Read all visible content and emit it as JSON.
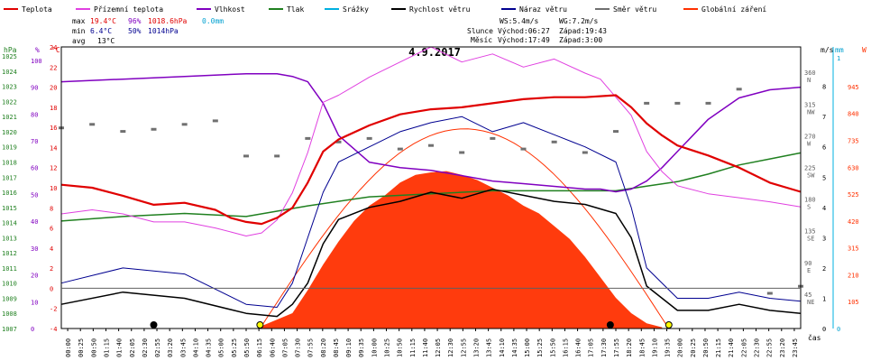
{
  "chart_data": {
    "type": "line",
    "title": "4.9.2017",
    "xlabel": "čas",
    "legend": [
      {
        "label": "Teplota",
        "color": "#e00000"
      },
      {
        "label": "Přízemní teplota",
        "color": "#e040e0"
      },
      {
        "label": "Vlhkost",
        "color": "#8000c0"
      },
      {
        "label": "Tlak",
        "color": "#208020"
      },
      {
        "label": "Srážky",
        "color": "#00b0e0"
      },
      {
        "label": "Rychlost větru",
        "color": "#000000"
      },
      {
        "label": "Náraz větru",
        "color": "#000090"
      },
      {
        "label": "Směr větru",
        "color": "#707070"
      },
      {
        "label": "Globální záření",
        "color": "#ff3000"
      }
    ],
    "stats": {
      "max_label": "max",
      "max_temp": "19.4°C",
      "max_hum": "96%",
      "max_press": "1018.6hPa",
      "max_rain": "0.0mm",
      "min_label": "min",
      "min_temp": "6.4°C",
      "min_hum": "50%",
      "min_press": "1014hPa",
      "avg_label": "avg",
      "avg_temp": "13°C"
    },
    "sun": {
      "ws": "WS:5.4m/s",
      "wg": "WG:7.2m/s",
      "slunce_label": "Slunce",
      "sun_rise": "Východ:06:27",
      "sun_set": "Západ:19:43",
      "mesic_label": "Měsíc",
      "moon_rise": "Východ:17:49",
      "moon_set": "Západ:3:00"
    },
    "axis_units": {
      "hpa": "hPa",
      "pct": "%",
      "degc": "°C",
      "ms": "m/s",
      "mm": "mm",
      "w": "W"
    },
    "pressure_ticks": [
      "1025",
      "1024",
      "1023",
      "1022",
      "1021",
      "1020",
      "1019",
      "1018",
      "1017",
      "1016",
      "1015",
      "1014",
      "1013",
      "1012",
      "1011",
      "1010",
      "1009",
      "1008",
      "1007"
    ],
    "humidity_ticks": [
      "100",
      "90",
      "80",
      "70",
      "60",
      "50",
      "40",
      "30",
      "20",
      "10",
      "0"
    ],
    "temperature_ticks": [
      "24",
      "22",
      "20",
      "18",
      "16",
      "14",
      "12",
      "10",
      "8",
      "6",
      "4",
      "2",
      "0",
      "-2",
      "-4"
    ],
    "direction_ticks": [
      {
        "v": 360,
        "a": "360",
        "b": "N"
      },
      {
        "v": 315,
        "a": "315",
        "b": "NW"
      },
      {
        "v": 270,
        "a": "270",
        "b": "W"
      },
      {
        "v": 225,
        "a": "225",
        "b": "SW"
      },
      {
        "v": 180,
        "a": "180",
        "b": "S"
      },
      {
        "v": 135,
        "a": "135",
        "b": "SE"
      },
      {
        "v": 90,
        "a": "90",
        "b": "E"
      },
      {
        "v": 45,
        "a": "45",
        "b": "NE"
      }
    ],
    "wind_ticks": [
      "8",
      "7",
      "6",
      "5",
      "4",
      "3",
      "2",
      "1",
      "0"
    ],
    "rain_ticks": [
      "1",
      "0"
    ],
    "radiation_ticks": [
      "945",
      "840",
      "735",
      "630",
      "525",
      "420",
      "315",
      "210",
      "105"
    ],
    "x_ticks": [
      "00:00",
      "00:25",
      "00:50",
      "01:15",
      "01:40",
      "02:05",
      "02:30",
      "02:55",
      "03:20",
      "03:45",
      "04:10",
      "04:35",
      "05:00",
      "05:25",
      "05:50",
      "06:15",
      "06:40",
      "07:05",
      "07:30",
      "07:55",
      "08:20",
      "08:45",
      "09:10",
      "09:35",
      "10:00",
      "10:25",
      "10:50",
      "11:15",
      "11:40",
      "12:05",
      "12:30",
      "12:55",
      "13:20",
      "13:45",
      "14:10",
      "14:35",
      "15:00",
      "15:25",
      "15:50",
      "16:15",
      "16:40",
      "17:05",
      "17:30",
      "17:55",
      "18:20",
      "18:45",
      "19:10",
      "19:35",
      "20:00",
      "20:25",
      "20:50",
      "21:15",
      "21:40",
      "22:05",
      "22:30",
      "22:55",
      "23:20",
      "23:45"
    ],
    "x_range_hours": [
      0,
      24
    ],
    "series": [
      {
        "name": "Teplota",
        "unit": "°C",
        "x": [
          0,
          1,
          2,
          3,
          4,
          5,
          5.5,
          6,
          6.5,
          7,
          7.5,
          8,
          8.5,
          9,
          10,
          11,
          12,
          13,
          14,
          15,
          16,
          17,
          18,
          18.5,
          19,
          19.5,
          20,
          21,
          22,
          23,
          24
        ],
        "y": [
          10.3,
          10,
          9.2,
          8.3,
          8.5,
          7.8,
          7,
          6.6,
          6.4,
          7,
          8,
          10.5,
          13.6,
          14.8,
          16.2,
          17.3,
          17.8,
          18,
          18.4,
          18.8,
          19,
          19,
          19.2,
          18,
          16.4,
          15.2,
          14.2,
          13.2,
          12,
          10.5,
          9.6
        ]
      },
      {
        "name": "Přízemní teplota",
        "unit": "°C",
        "x": [
          0,
          1,
          2,
          3,
          4,
          5,
          5.5,
          6,
          6.5,
          7,
          7.5,
          8,
          8.5,
          9,
          10,
          11,
          12,
          13,
          14,
          15,
          16,
          17,
          17.5,
          18,
          18.5,
          19,
          19.5,
          20,
          21,
          22,
          23,
          24
        ],
        "y": [
          7.4,
          7.8,
          7.4,
          6.6,
          6.6,
          6,
          5.6,
          5.2,
          5.5,
          6.8,
          9.5,
          13.5,
          18.5,
          19.2,
          21,
          22.5,
          24,
          22.5,
          23.3,
          22,
          22.8,
          21.4,
          20.8,
          19,
          17.2,
          13.6,
          11.6,
          10.2,
          9.4,
          9,
          8.6,
          8.1
        ]
      },
      {
        "name": "Vlhkost",
        "unit": "%",
        "x": [
          0,
          2,
          4,
          6,
          7,
          7.5,
          8,
          8.5,
          9,
          10,
          11,
          12,
          13,
          14,
          15,
          16,
          17,
          17.5,
          18,
          18.5,
          19,
          19.5,
          20,
          21,
          22,
          23,
          24
        ],
        "y": [
          92,
          93,
          94,
          95,
          95,
          94,
          92,
          84,
          72,
          62,
          60,
          59,
          57,
          55,
          54,
          53,
          52,
          52,
          51,
          52,
          55,
          60,
          66,
          78,
          86,
          89,
          90
        ]
      },
      {
        "name": "Tlak",
        "unit": "hPa",
        "x": [
          0,
          2,
          4,
          6,
          8,
          10,
          12,
          14,
          16,
          18,
          19,
          20,
          21,
          22,
          23,
          24
        ],
        "y": [
          1014.1,
          1014.4,
          1014.6,
          1014.4,
          1015.1,
          1015.7,
          1015.9,
          1016.1,
          1016.1,
          1016.1,
          1016.4,
          1016.7,
          1017.2,
          1017.8,
          1018.2,
          1018.6
        ]
      },
      {
        "name": "Globální záření",
        "unit": "W",
        "x": [
          6.5,
          7.5,
          8,
          8.5,
          9,
          9.5,
          10,
          10.5,
          11,
          11.5,
          12,
          12.5,
          13,
          13.5,
          14,
          14.5,
          15,
          15.5,
          16,
          16.5,
          17,
          17.5,
          18,
          18.5,
          19,
          19.5
        ],
        "y": [
          10,
          60,
          150,
          250,
          340,
          420,
          480,
          520,
          570,
          600,
          610,
          615,
          600,
          580,
          550,
          520,
          480,
          450,
          400,
          350,
          280,
          200,
          120,
          60,
          20,
          5
        ]
      },
      {
        "name": "Rychlost větru",
        "unit": "m/s",
        "x": [
          0,
          2,
          4,
          6,
          7,
          7.5,
          8,
          8.5,
          9,
          10,
          11,
          12,
          13,
          14,
          15,
          16,
          17,
          18,
          18.5,
          19,
          20,
          21,
          22,
          23,
          24
        ],
        "y": [
          0.8,
          1.2,
          1.0,
          0.5,
          0.4,
          0.8,
          1.5,
          2.8,
          3.6,
          4.0,
          4.2,
          4.5,
          4.3,
          4.6,
          4.4,
          4.2,
          4.1,
          3.8,
          3.0,
          1.4,
          0.6,
          0.6,
          0.8,
          0.6,
          0.5
        ]
      },
      {
        "name": "Náraz větru",
        "unit": "m/s",
        "x": [
          0,
          2,
          4,
          6,
          7,
          7.5,
          8,
          8.5,
          9,
          10,
          11,
          12,
          13,
          14,
          15,
          16,
          17,
          18,
          18.5,
          19,
          20,
          21,
          22,
          23,
          24
        ],
        "y": [
          1.5,
          2.0,
          1.8,
          0.8,
          0.7,
          1.5,
          3.0,
          4.5,
          5.5,
          6.0,
          6.5,
          6.8,
          7.0,
          6.5,
          6.8,
          6.4,
          6.0,
          5.5,
          4.0,
          2.0,
          1.0,
          1.0,
          1.2,
          1.0,
          0.9
        ]
      },
      {
        "name": "Směr větru",
        "unit": "°",
        "x": [
          0,
          1,
          2,
          3,
          4,
          5,
          6,
          7,
          8,
          9,
          10,
          11,
          12,
          13,
          14,
          15,
          16,
          17,
          18,
          19,
          20,
          21,
          22,
          23,
          24
        ],
        "y": [
          285,
          290,
          280,
          283,
          290,
          295,
          245,
          245,
          270,
          265,
          270,
          255,
          260,
          250,
          270,
          255,
          265,
          250,
          280,
          320,
          320,
          320,
          340,
          50,
          60
        ]
      }
    ]
  }
}
